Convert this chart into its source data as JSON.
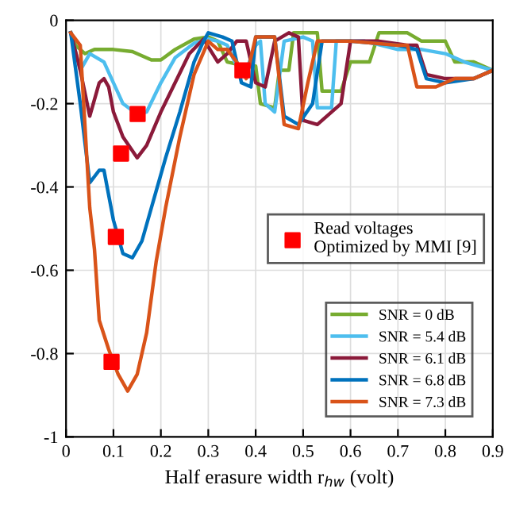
{
  "chart_data": {
    "type": "line",
    "xlabel": "Half erasure width r$_{hw}$ (volt)",
    "xlim": [
      0,
      0.9
    ],
    "xticks": [
      0,
      0.1,
      0.2,
      0.3,
      0.4,
      0.5,
      0.6,
      0.7,
      0.8,
      0.9
    ],
    "ylim": [
      -1,
      0
    ],
    "yticks": [
      -1,
      -0.8,
      -0.6,
      -0.4,
      -0.2,
      0
    ],
    "grid": true,
    "legend": "bottom right",
    "series": [
      {
        "name": "SNR = 0 dB",
        "color": "#77ac30",
        "x": [
          0.01,
          0.02,
          0.04,
          0.06,
          0.1,
          0.14,
          0.18,
          0.2,
          0.23,
          0.27,
          0.3,
          0.32,
          0.34,
          0.38,
          0.4,
          0.41,
          0.44,
          0.45,
          0.47,
          0.48,
          0.53,
          0.54,
          0.58,
          0.6,
          0.64,
          0.66,
          0.72,
          0.75,
          0.8,
          0.82,
          0.86,
          0.9
        ],
        "values": [
          -0.03,
          -0.06,
          -0.08,
          -0.07,
          -0.07,
          -0.075,
          -0.095,
          -0.095,
          -0.07,
          -0.045,
          -0.04,
          -0.05,
          -0.1,
          -0.11,
          -0.11,
          -0.2,
          -0.21,
          -0.12,
          -0.12,
          -0.03,
          -0.03,
          -0.17,
          -0.17,
          -0.1,
          -0.1,
          -0.03,
          -0.03,
          -0.05,
          -0.05,
          -0.1,
          -0.1,
          -0.12
        ]
      },
      {
        "name": "SNR = 5.4 dB",
        "color": "#4dbeee",
        "x": [
          0.01,
          0.03,
          0.05,
          0.08,
          0.1,
          0.12,
          0.15,
          0.17,
          0.2,
          0.23,
          0.27,
          0.3,
          0.32,
          0.34,
          0.36,
          0.38,
          0.4,
          0.41,
          0.42,
          0.44,
          0.46,
          0.5,
          0.52,
          0.53,
          0.56,
          0.57,
          0.63,
          0.7,
          0.75,
          0.8,
          0.84,
          0.9
        ],
        "values": [
          -0.03,
          -0.12,
          -0.08,
          -0.1,
          -0.15,
          -0.2,
          -0.225,
          -0.22,
          -0.15,
          -0.09,
          -0.055,
          -0.045,
          -0.05,
          -0.06,
          -0.11,
          -0.12,
          -0.06,
          -0.05,
          -0.2,
          -0.22,
          -0.05,
          -0.04,
          -0.05,
          -0.21,
          -0.21,
          -0.05,
          -0.05,
          -0.07,
          -0.07,
          -0.08,
          -0.1,
          -0.12
        ]
      },
      {
        "name": "SNR = 6.1 dB",
        "color": "#8b1a3a",
        "x": [
          0.01,
          0.03,
          0.05,
          0.07,
          0.08,
          0.09,
          0.1,
          0.12,
          0.15,
          0.17,
          0.2,
          0.23,
          0.26,
          0.29,
          0.32,
          0.34,
          0.36,
          0.38,
          0.4,
          0.42,
          0.44,
          0.47,
          0.49,
          0.5,
          0.53,
          0.58,
          0.6,
          0.66,
          0.72,
          0.74,
          0.76,
          0.8,
          0.86,
          0.9
        ],
        "values": [
          -0.03,
          -0.12,
          -0.23,
          -0.15,
          -0.14,
          -0.16,
          -0.22,
          -0.28,
          -0.33,
          -0.3,
          -0.22,
          -0.15,
          -0.08,
          -0.045,
          -0.1,
          -0.08,
          -0.05,
          -0.05,
          -0.15,
          -0.16,
          -0.05,
          -0.03,
          -0.04,
          -0.24,
          -0.25,
          -0.2,
          -0.05,
          -0.05,
          -0.06,
          -0.06,
          -0.13,
          -0.14,
          -0.14,
          -0.12
        ]
      },
      {
        "name": "SNR = 6.8 dB",
        "color": "#0072bd",
        "x": [
          0.01,
          0.03,
          0.05,
          0.07,
          0.08,
          0.1,
          0.12,
          0.14,
          0.16,
          0.18,
          0.21,
          0.24,
          0.27,
          0.29,
          0.3,
          0.33,
          0.35,
          0.37,
          0.39,
          0.4,
          0.44,
          0.46,
          0.49,
          0.52,
          0.54,
          0.6,
          0.7,
          0.74,
          0.76,
          0.8,
          0.86,
          0.9
        ],
        "values": [
          -0.03,
          -0.2,
          -0.39,
          -0.36,
          -0.36,
          -0.48,
          -0.56,
          -0.57,
          -0.53,
          -0.45,
          -0.33,
          -0.22,
          -0.1,
          -0.05,
          -0.03,
          -0.04,
          -0.05,
          -0.15,
          -0.16,
          -0.04,
          -0.04,
          -0.23,
          -0.25,
          -0.2,
          -0.05,
          -0.05,
          -0.06,
          -0.07,
          -0.14,
          -0.15,
          -0.14,
          -0.12
        ]
      },
      {
        "name": "SNR = 7.3 dB",
        "color": "#d95319",
        "x": [
          0.01,
          0.03,
          0.05,
          0.06,
          0.07,
          0.09,
          0.11,
          0.13,
          0.15,
          0.17,
          0.19,
          0.21,
          0.24,
          0.27,
          0.3,
          0.32,
          0.34,
          0.36,
          0.38,
          0.4,
          0.44,
          0.46,
          0.49,
          0.51,
          0.53,
          0.6,
          0.7,
          0.72,
          0.74,
          0.78,
          0.82,
          0.86,
          0.9
        ],
        "values": [
          -0.03,
          -0.06,
          -0.45,
          -0.55,
          -0.72,
          -0.79,
          -0.85,
          -0.89,
          -0.85,
          -0.75,
          -0.58,
          -0.45,
          -0.28,
          -0.13,
          -0.05,
          -0.07,
          -0.07,
          -0.1,
          -0.14,
          -0.04,
          -0.04,
          -0.25,
          -0.26,
          -0.15,
          -0.05,
          -0.05,
          -0.06,
          -0.06,
          -0.16,
          -0.16,
          -0.14,
          -0.14,
          -0.12
        ]
      },
      {
        "name": "Read voltages\nOptimized by MMI [9]",
        "type": "scatter",
        "marker": "square",
        "color": "#ff0000",
        "x": [
          0.151,
          0.116,
          0.105,
          0.096,
          0.372
        ],
        "values": [
          -0.225,
          -0.32,
          -0.52,
          -0.82,
          -0.12
        ]
      }
    ]
  }
}
